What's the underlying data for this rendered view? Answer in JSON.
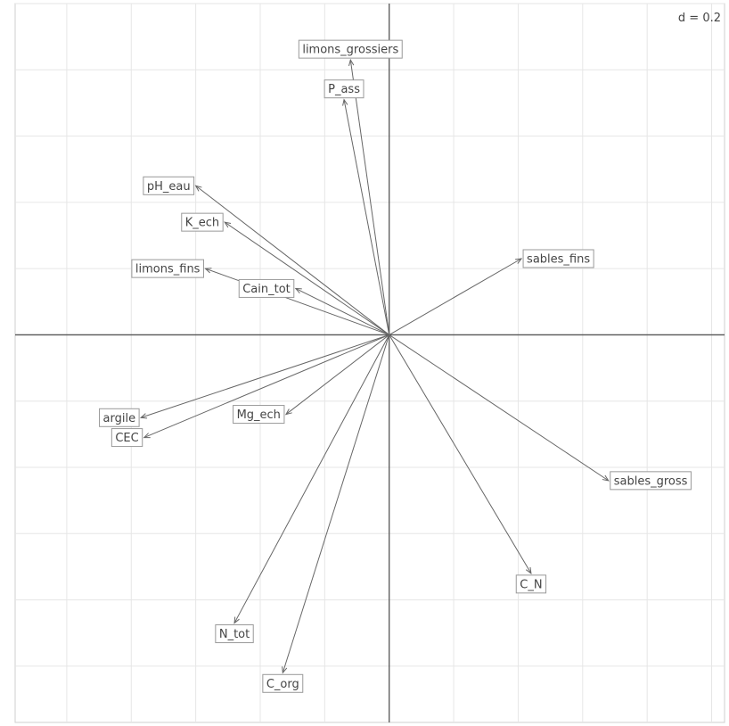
{
  "chart_data": {
    "type": "biplot",
    "grid": true,
    "grid_step": 0.2,
    "scale_label": "d = 0.2",
    "xlim": [
      -1.16,
      1.04
    ],
    "ylim": [
      -1.17,
      1.0
    ],
    "variables": [
      {
        "name": "limons_grossiers",
        "x": -0.12,
        "y": 0.83
      },
      {
        "name": "P_ass",
        "x": -0.14,
        "y": 0.71
      },
      {
        "name": "pH_eau",
        "x": -0.6,
        "y": 0.45
      },
      {
        "name": "K_ech",
        "x": -0.51,
        "y": 0.34
      },
      {
        "name": "limons_fins",
        "x": -0.57,
        "y": 0.2
      },
      {
        "name": "Cain_tot",
        "x": -0.29,
        "y": 0.14
      },
      {
        "name": "sables_fins",
        "x": 0.41,
        "y": 0.23
      },
      {
        "name": "argile",
        "x": -0.77,
        "y": -0.25
      },
      {
        "name": "CEC",
        "x": -0.76,
        "y": -0.31
      },
      {
        "name": "Mg_ech",
        "x": -0.32,
        "y": -0.24
      },
      {
        "name": "sables_gross",
        "x": 0.68,
        "y": -0.44
      },
      {
        "name": "C_N",
        "x": 0.44,
        "y": -0.72
      },
      {
        "name": "N_tot",
        "x": -0.48,
        "y": -0.87
      },
      {
        "name": "C_org",
        "x": -0.33,
        "y": -1.02
      }
    ]
  }
}
